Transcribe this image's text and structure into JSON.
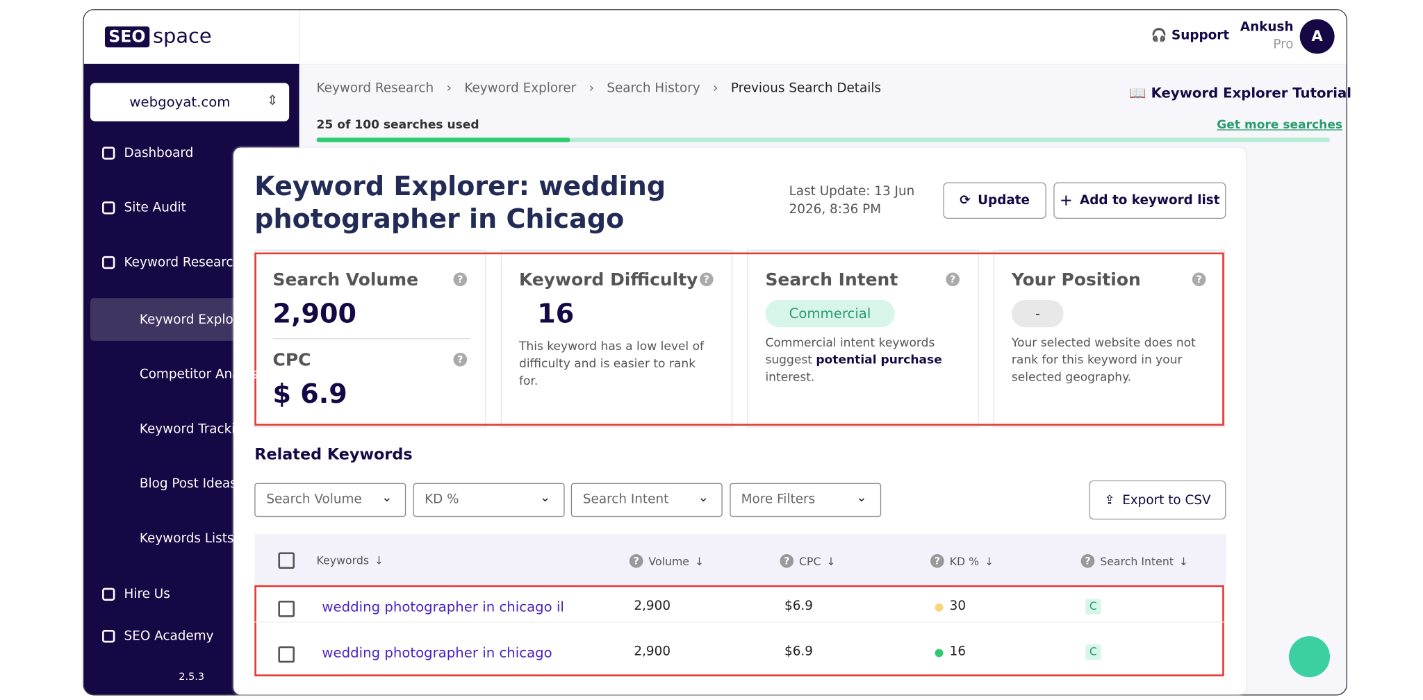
{
  "brand": {
    "left": "SEO",
    "right": "space"
  },
  "header": {
    "support": "Support",
    "user_name": "Ankush",
    "user_plan": "Pro",
    "avatar": "A"
  },
  "sidebar": {
    "site": "webgoyat.com",
    "items": [
      "Dashboard",
      "Site Audit",
      "Keyword Research"
    ],
    "subitems": [
      "Keyword Explorer",
      "Competitor Analysis",
      "Keyword Tracking",
      "Blog Post Ideas",
      "Keywords Lists"
    ],
    "links": [
      "Hire Us",
      "SEO Academy"
    ],
    "version": "2.5.3"
  },
  "breadcrumb": [
    "Keyword Research",
    "Keyword Explorer",
    "Search History",
    "Previous Search Details"
  ],
  "tutorial": "Keyword Explorer Tutorial",
  "usage": {
    "text": "25 of 100 searches used",
    "used": 25,
    "total": 100,
    "more": "Get more searches"
  },
  "title": "Keyword Explorer: wedding photographer in Chicago",
  "last_update": "Last Update: 13 Jun 2026, 8:36 PM",
  "buttons": {
    "update": "Update",
    "add": "Add to keyword list",
    "export": "Export to CSV"
  },
  "metrics": {
    "volume": {
      "label": "Search Volume",
      "value": "2,900"
    },
    "cpc": {
      "label": "CPC",
      "value": "$ 6.9"
    },
    "difficulty": {
      "label": "Keyword Difficulty",
      "value": "16",
      "text": "This keyword has a low level of difficulty and is easier to rank for."
    },
    "intent": {
      "label": "Search Intent",
      "badge": "Commercial",
      "text": [
        "Commercial intent keywords suggest ",
        "potential purchase",
        " interest."
      ]
    },
    "position": {
      "label": "Your Position",
      "badge": "-",
      "text": "Your selected website does not rank for this keyword in your selected geography."
    }
  },
  "related": {
    "title": "Related Keywords",
    "filters": [
      "Search Volume",
      "KD %",
      "Search Intent",
      "More Filters"
    ],
    "columns": [
      "Keywords",
      "Volume",
      "CPC",
      "KD %",
      "Search Intent"
    ],
    "rows": [
      {
        "keyword": "wedding photographer in chicago il",
        "volume": "2,900",
        "cpc": "$6.9",
        "kd": "30",
        "kd_color": "#f5d77a",
        "intent": "C"
      },
      {
        "keyword": "wedding photographer in chicago",
        "volume": "2,900",
        "cpc": "$6.9",
        "kd": "16",
        "kd_color": "#2ecc71",
        "intent": "C"
      }
    ]
  }
}
